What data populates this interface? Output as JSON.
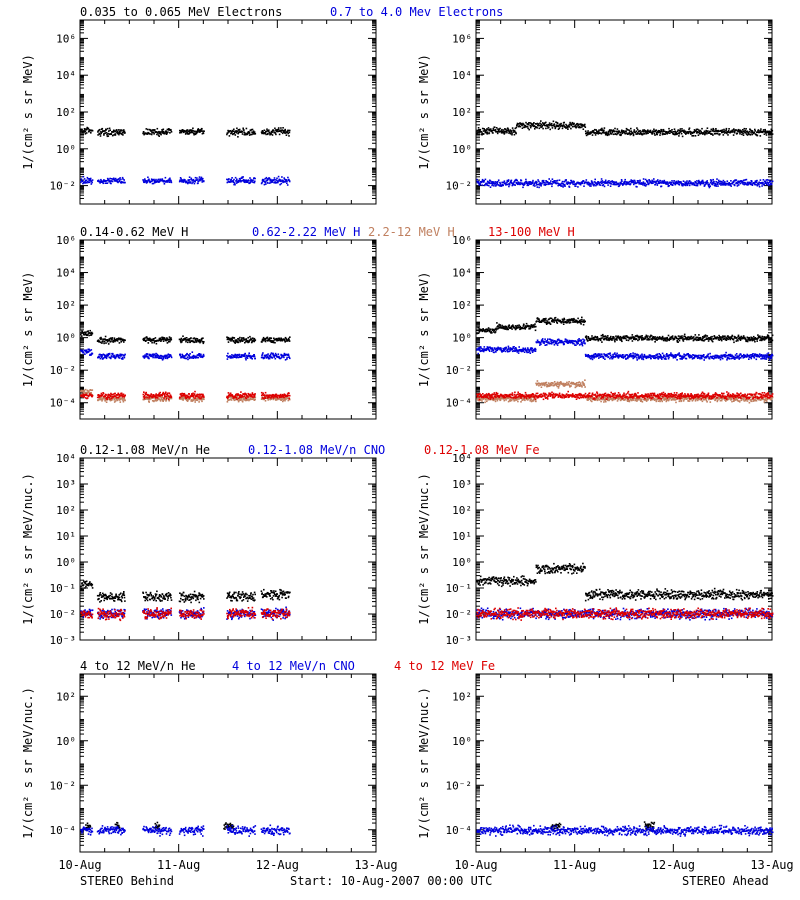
{
  "footer": {
    "left": "STEREO Behind",
    "center": "Start: 10-Aug-2007 00:00 UTC",
    "right": "STEREO Ahead"
  },
  "x_axis": {
    "ticks": [
      "10-Aug",
      "11-Aug",
      "12-Aug",
      "13-Aug"
    ]
  },
  "rows": [
    {
      "legend": [
        {
          "text": "0.035 to 0.065 MeV Electrons",
          "color": "#000000"
        },
        {
          "text": "0.7 to 4.0 Mev Electrons",
          "color": "#0000dd"
        }
      ]
    },
    {
      "legend": [
        {
          "text": "0.14-0.62 MeV H",
          "color": "#000000"
        },
        {
          "text": "0.62-2.22 MeV H",
          "color": "#0000dd"
        },
        {
          "text": "2.2-12 MeV H",
          "color": "#c08060"
        },
        {
          "text": "13-100 MeV H",
          "color": "#dd0000"
        }
      ]
    },
    {
      "legend": [
        {
          "text": "0.12-1.08 MeV/n He",
          "color": "#000000"
        },
        {
          "text": "0.12-1.08 MeV/n CNO",
          "color": "#0000dd"
        },
        {
          "text": "0.12-1.08 MeV Fe",
          "color": "#dd0000"
        }
      ]
    },
    {
      "legend": [
        {
          "text": "4 to 12 MeV/n He",
          "color": "#000000"
        },
        {
          "text": "4 to 12 MeV/n CNO",
          "color": "#0000dd"
        },
        {
          "text": "4 to 12 MeV Fe",
          "color": "#dd0000"
        }
      ]
    }
  ],
  "chart_data": [
    {
      "type": "scatter",
      "row": 0,
      "spacecraft": "STEREO Behind",
      "ylabel": "1/(cm² s sr MeV)",
      "yscale": "log",
      "ylim_exp": [
        -3,
        7
      ],
      "ytick_exps": [
        -2,
        0,
        2,
        4,
        6
      ],
      "xlim_days": [
        0,
        3
      ],
      "series": [
        {
          "name": "0.035 to 0.065 MeV Electrons",
          "color": "#000000",
          "segments": [
            [
              0.0,
              0.12,
              11
            ],
            [
              0.17,
              0.45,
              9
            ],
            [
              0.63,
              0.92,
              9
            ],
            [
              1.0,
              1.25,
              9
            ],
            [
              1.48,
              1.77,
              9
            ],
            [
              1.83,
              2.12,
              9
            ]
          ]
        },
        {
          "name": "0.7 to 4.0 Mev Electrons",
          "color": "#0000dd",
          "segments": [
            [
              0.0,
              0.12,
              0.02
            ],
            [
              0.17,
              0.45,
              0.02
            ],
            [
              0.63,
              0.92,
              0.02
            ],
            [
              1.0,
              1.25,
              0.02
            ],
            [
              1.48,
              1.77,
              0.02
            ],
            [
              1.83,
              2.12,
              0.02
            ]
          ]
        }
      ]
    },
    {
      "type": "scatter",
      "row": 0,
      "spacecraft": "STEREO Ahead",
      "ylabel": "1/(cm² s sr MeV)",
      "yscale": "log",
      "ylim_exp": [
        -3,
        7
      ],
      "ytick_exps": [
        -2,
        0,
        2,
        4,
        6
      ],
      "xlim_days": [
        0,
        3
      ],
      "series": [
        {
          "name": "0.035 to 0.065 MeV Electrons",
          "color": "#000000",
          "segments": [
            [
              0.0,
              0.4,
              10
            ],
            [
              0.4,
              1.1,
              20
            ],
            [
              1.1,
              3.0,
              9
            ]
          ]
        },
        {
          "name": "0.7 to 4.0 Mev Electrons",
          "color": "#0000dd",
          "segments": [
            [
              0.0,
              3.0,
              0.015
            ]
          ]
        }
      ]
    },
    {
      "type": "scatter",
      "row": 1,
      "spacecraft": "STEREO Behind",
      "ylabel": "1/(cm² s sr MeV)",
      "yscale": "log",
      "ylim_exp": [
        -5,
        6
      ],
      "ytick_exps": [
        -4,
        -2,
        0,
        2,
        4,
        6
      ],
      "xlim_days": [
        0,
        3
      ],
      "series": [
        {
          "name": "0.14-0.62 MeV H",
          "color": "#000000",
          "segments": [
            [
              0.0,
              0.12,
              2
            ],
            [
              0.17,
              0.45,
              0.8
            ],
            [
              0.63,
              0.92,
              0.8
            ],
            [
              1.0,
              1.25,
              0.8
            ],
            [
              1.48,
              1.77,
              0.8
            ],
            [
              1.83,
              2.12,
              0.8
            ]
          ]
        },
        {
          "name": "0.62-2.22 MeV H",
          "color": "#0000dd",
          "segments": [
            [
              0.0,
              0.12,
              0.15
            ],
            [
              0.17,
              0.45,
              0.08
            ],
            [
              0.63,
              0.92,
              0.08
            ],
            [
              1.0,
              1.25,
              0.08
            ],
            [
              1.48,
              1.77,
              0.08
            ],
            [
              1.83,
              2.12,
              0.08
            ]
          ]
        },
        {
          "name": "2.2-12 MeV H",
          "color": "#c08060",
          "segments": [
            [
              0.0,
              0.12,
              0.0005
            ],
            [
              0.17,
              0.45,
              0.0002
            ],
            [
              0.63,
              0.92,
              0.0002
            ],
            [
              1.0,
              1.25,
              0.0002
            ],
            [
              1.48,
              1.77,
              0.0002
            ],
            [
              1.83,
              2.12,
              0.0002
            ]
          ]
        },
        {
          "name": "13-100 MeV H",
          "color": "#dd0000",
          "segments": [
            [
              0.0,
              0.12,
              0.0003
            ],
            [
              0.17,
              0.45,
              0.0003
            ],
            [
              0.63,
              0.92,
              0.0003
            ],
            [
              1.0,
              1.25,
              0.0003
            ],
            [
              1.48,
              1.77,
              0.0003
            ],
            [
              1.83,
              2.12,
              0.0003
            ]
          ]
        }
      ]
    },
    {
      "type": "scatter",
      "row": 1,
      "spacecraft": "STEREO Ahead",
      "ylabel": "1/(cm² s sr MeV)",
      "yscale": "log",
      "ylim_exp": [
        -5,
        6
      ],
      "ytick_exps": [
        -4,
        -2,
        0,
        2,
        4,
        6
      ],
      "xlim_days": [
        0,
        3
      ],
      "series": [
        {
          "name": "0.14-0.62 MeV H",
          "color": "#000000",
          "segments": [
            [
              0.0,
              0.2,
              3
            ],
            [
              0.2,
              0.6,
              5
            ],
            [
              0.6,
              1.1,
              12
            ],
            [
              1.1,
              3.0,
              1
            ]
          ]
        },
        {
          "name": "0.62-2.22 MeV H",
          "color": "#0000dd",
          "segments": [
            [
              0.0,
              0.6,
              0.2
            ],
            [
              0.6,
              1.1,
              0.6
            ],
            [
              1.1,
              3.0,
              0.08
            ]
          ]
        },
        {
          "name": "2.2-12 MeV H",
          "color": "#c08060",
          "segments": [
            [
              0.0,
              0.6,
              0.0002
            ],
            [
              0.6,
              1.1,
              0.0015
            ],
            [
              1.1,
              3.0,
              0.0002
            ]
          ]
        },
        {
          "name": "13-100 MeV H",
          "color": "#dd0000",
          "segments": [
            [
              0.0,
              3.0,
              0.0003
            ]
          ]
        }
      ]
    },
    {
      "type": "scatter",
      "row": 2,
      "spacecraft": "STEREO Behind",
      "ylabel": "1/(cm² s sr MeV/nuc.)",
      "yscale": "log",
      "ylim_exp": [
        -3,
        4
      ],
      "ytick_exps": [
        -3,
        -2,
        -1,
        0,
        1,
        2,
        3,
        4
      ],
      "xlim_days": [
        0,
        3
      ],
      "series": [
        {
          "name": "0.12-1.08 MeV/n He",
          "color": "#000000",
          "segments": [
            [
              0.0,
              0.12,
              0.15
            ],
            [
              0.17,
              0.45,
              0.05
            ],
            [
              0.63,
              0.92,
              0.05
            ],
            [
              1.0,
              1.25,
              0.05
            ],
            [
              1.48,
              1.77,
              0.05
            ],
            [
              1.83,
              2.12,
              0.06
            ]
          ]
        },
        {
          "name": "0.12-1.08 MeV/n CNO",
          "color": "#0000dd",
          "segments": [
            [
              0.0,
              0.12,
              0.012
            ],
            [
              0.17,
              0.45,
              0.011
            ],
            [
              0.63,
              0.92,
              0.011
            ],
            [
              1.0,
              1.25,
              0.011
            ],
            [
              1.48,
              1.77,
              0.011
            ],
            [
              1.83,
              2.12,
              0.011
            ]
          ]
        },
        {
          "name": "0.12-1.08 MeV Fe",
          "color": "#dd0000",
          "segments": [
            [
              0.0,
              0.12,
              0.011
            ],
            [
              0.17,
              0.45,
              0.011
            ],
            [
              0.63,
              0.92,
              0.011
            ],
            [
              1.0,
              1.25,
              0.011
            ],
            [
              1.48,
              1.77,
              0.011
            ],
            [
              1.83,
              2.12,
              0.011
            ]
          ]
        }
      ]
    },
    {
      "type": "scatter",
      "row": 2,
      "spacecraft": "STEREO Ahead",
      "ylabel": "1/(cm² s sr MeV/nuc.)",
      "yscale": "log",
      "ylim_exp": [
        -3,
        4
      ],
      "ytick_exps": [
        -3,
        -2,
        -1,
        0,
        1,
        2,
        3,
        4
      ],
      "xlim_days": [
        0,
        3
      ],
      "series": [
        {
          "name": "0.12-1.08 MeV/n He",
          "color": "#000000",
          "segments": [
            [
              0.0,
              0.6,
              0.2
            ],
            [
              0.6,
              1.1,
              0.6
            ],
            [
              1.1,
              3.0,
              0.06
            ]
          ]
        },
        {
          "name": "0.12-1.08 MeV/n CNO",
          "color": "#0000dd",
          "segments": [
            [
              0.0,
              3.0,
              0.011
            ]
          ]
        },
        {
          "name": "0.12-1.08 MeV Fe",
          "color": "#dd0000",
          "segments": [
            [
              0.0,
              3.0,
              0.011
            ]
          ]
        }
      ]
    },
    {
      "type": "scatter",
      "row": 3,
      "spacecraft": "STEREO Behind",
      "ylabel": "1/(cm² s sr MeV/nuc.)",
      "yscale": "log",
      "ylim_exp": [
        -5,
        3
      ],
      "ytick_exps": [
        -4,
        -2,
        0,
        2
      ],
      "xlim_days": [
        0,
        3
      ],
      "series": [
        {
          "name": "4 to 12 MeV/n He",
          "color": "#000000",
          "segments": [
            [
              0.05,
              0.1,
              0.00015
            ],
            [
              0.35,
              0.4,
              0.00015
            ],
            [
              0.75,
              0.8,
              0.00015
            ],
            [
              1.45,
              1.55,
              0.00015
            ]
          ]
        },
        {
          "name": "4 to 12 MeV/n CNO",
          "color": "#0000dd",
          "segments": [
            [
              0.0,
              0.12,
              0.0001
            ],
            [
              0.17,
              0.45,
              0.0001
            ],
            [
              0.63,
              0.92,
              0.0001
            ],
            [
              1.0,
              1.25,
              0.0001
            ],
            [
              1.48,
              1.77,
              0.0001
            ],
            [
              1.83,
              2.12,
              0.0001
            ]
          ]
        }
      ]
    },
    {
      "type": "scatter",
      "row": 3,
      "spacecraft": "STEREO Ahead",
      "ylabel": "1/(cm² s sr MeV/nuc.)",
      "yscale": "log",
      "ylim_exp": [
        -5,
        3
      ],
      "ytick_exps": [
        -4,
        -2,
        0,
        2
      ],
      "xlim_days": [
        0,
        3
      ],
      "series": [
        {
          "name": "4 to 12 MeV/n He",
          "color": "#000000",
          "segments": [
            [
              0.75,
              0.85,
              0.00015
            ],
            [
              1.7,
              1.8,
              0.00015
            ]
          ]
        },
        {
          "name": "4 to 12 MeV/n CNO",
          "color": "#0000dd",
          "segments": [
            [
              0.0,
              3.0,
              0.0001
            ]
          ]
        }
      ]
    }
  ]
}
